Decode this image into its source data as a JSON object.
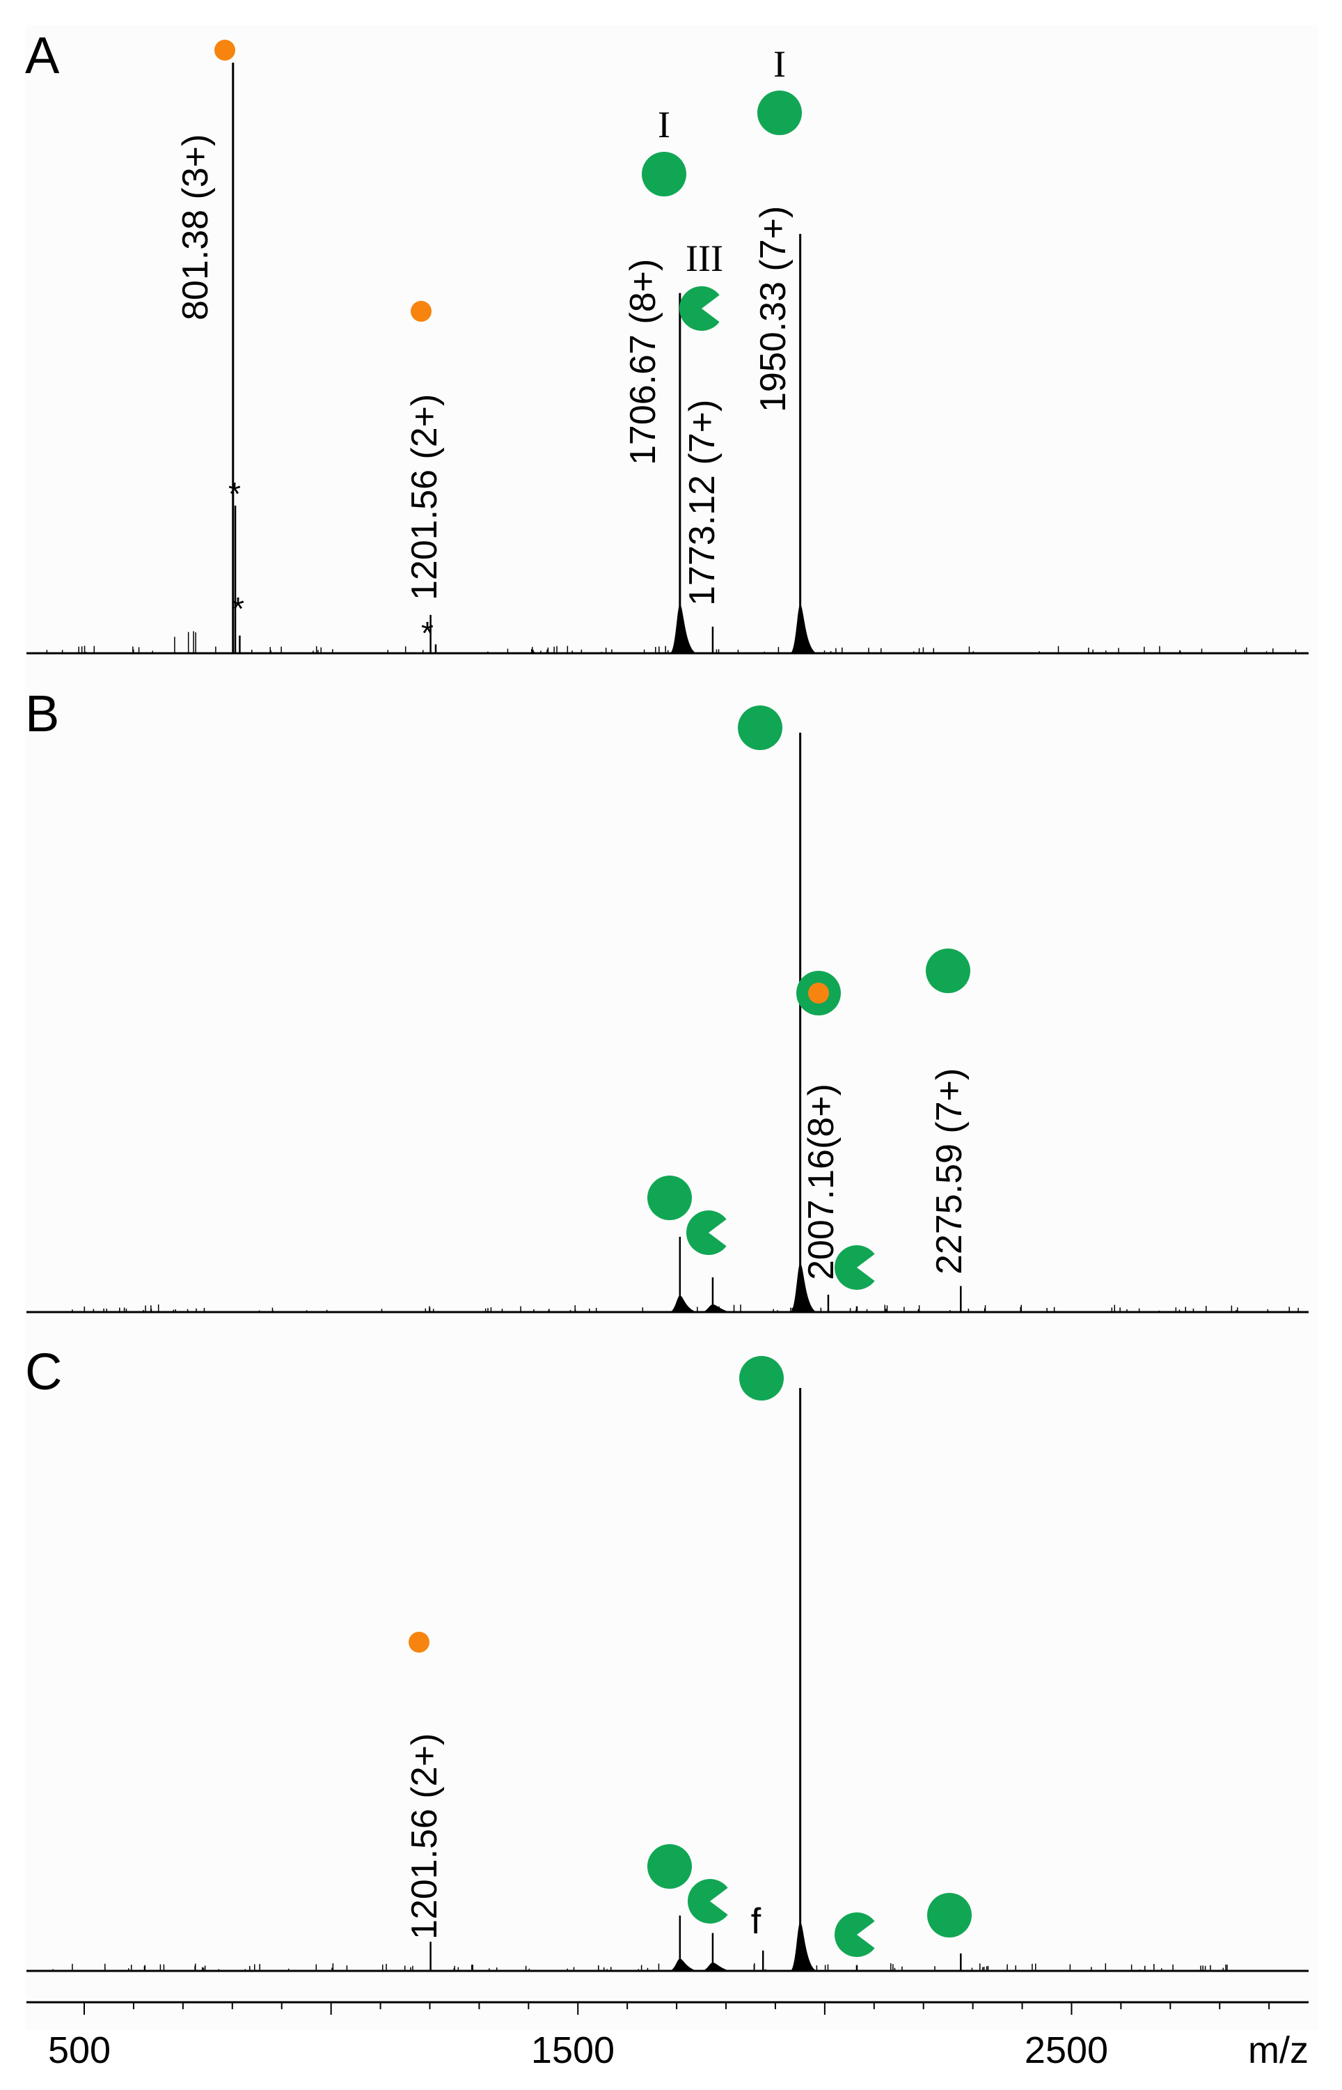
{
  "colors": {
    "green": "#11a654",
    "orange": "#f7840f",
    "trace": "#000000"
  },
  "chart_data": {
    "type": "line",
    "xlabel": "m/z",
    "xlim": [
      390,
      2990
    ],
    "x_ticks": [
      {
        "value": 500,
        "label": "500"
      },
      {
        "value": 1500,
        "label": "1500"
      },
      {
        "value": 2500,
        "label": "2500"
      }
    ],
    "panels": [
      {
        "letter": "A",
        "peaks": [
          {
            "mz": 801.38,
            "rel": 1.0,
            "label": "801.38 (3+)",
            "marker": "orange-dot"
          },
          {
            "mz": 806,
            "rel": 0.25,
            "star": "*"
          },
          {
            "mz": 815,
            "rel": 0.03,
            "star": "*"
          },
          {
            "mz": 1201.56,
            "rel": 0.065,
            "label": "1201.56 (2+)",
            "marker": "orange-dot"
          },
          {
            "mz": 1212,
            "rel": 0.015,
            "star": "*"
          },
          {
            "mz": 1706.67,
            "rel": 0.61,
            "label": "1706.67 (8+)",
            "marker": "green-circle",
            "roman": "I"
          },
          {
            "mz": 1773.12,
            "rel": 0.045,
            "label": "1773.12 (7+)",
            "marker": "green-pacman",
            "roman": "III"
          },
          {
            "mz": 1950.33,
            "rel": 0.71,
            "label": "1950.33 (7+)",
            "marker": "green-circle",
            "roman": "I"
          }
        ]
      },
      {
        "letter": "B",
        "peaks": [
          {
            "mz": 1706.67,
            "rel": 0.13,
            "marker": "green-circle"
          },
          {
            "mz": 1773.12,
            "rel": 0.06,
            "marker": "green-pacman"
          },
          {
            "mz": 1950.33,
            "rel": 1.0,
            "marker": "green-circle"
          },
          {
            "mz": 2007.16,
            "rel": 0.03,
            "label": "2007.16(8+)",
            "marker": "green-orange"
          },
          {
            "mz": 2065,
            "rel": 0.01,
            "marker": "green-pacman"
          },
          {
            "mz": 2275.59,
            "rel": 0.045,
            "label": "2275.59 (7+)",
            "marker": "green-circle"
          }
        ]
      },
      {
        "letter": "C",
        "peaks": [
          {
            "mz": 1201.56,
            "rel": 0.05,
            "label": "1201.56 (2+)",
            "marker": "orange-dot"
          },
          {
            "mz": 1706.67,
            "rel": 0.095,
            "marker": "green-circle"
          },
          {
            "mz": 1773.12,
            "rel": 0.065,
            "marker": "green-pacman"
          },
          {
            "mz": 1875,
            "rel": 0.035,
            "annotation": "f"
          },
          {
            "mz": 1950.33,
            "rel": 1.0,
            "marker": "green-circle"
          },
          {
            "mz": 2065,
            "rel": 0.01,
            "marker": "green-pacman"
          },
          {
            "mz": 2275.59,
            "rel": 0.03,
            "marker": "green-circle"
          }
        ]
      }
    ]
  }
}
